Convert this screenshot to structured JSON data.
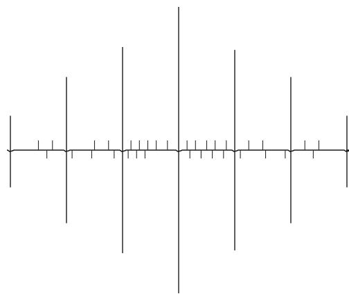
{
  "figure": {
    "background_color": "#ffffff",
    "line_color": "#1a1a1a",
    "description_type": "line spectrum with symmetric spikes around a central peak"
  },
  "chart_data": {
    "type": "line-spectrum",
    "title": "",
    "xlabel": "",
    "ylabel": "",
    "grid": false,
    "legend": "none",
    "major_peaks": [
      {
        "position": -3,
        "up": 0.24,
        "down": 0.26
      },
      {
        "position": -2,
        "up": 0.51,
        "down": 0.51
      },
      {
        "position": -1,
        "up": 0.72,
        "down": 0.72
      },
      {
        "position": 0,
        "up": 1.0,
        "down": 1.0
      },
      {
        "position": 1,
        "up": 0.7,
        "down": 0.7
      },
      {
        "position": 2,
        "up": 0.51,
        "down": 0.51
      },
      {
        "position": 3,
        "up": 0.24,
        "down": 0.26
      }
    ],
    "minor_ticks_above": [
      -2.5,
      -2.25,
      -1.5,
      -1.25,
      -0.85,
      -0.7,
      -0.55,
      -0.4,
      -0.2,
      0.15,
      0.3,
      0.5,
      0.65,
      0.85,
      1.25,
      1.5,
      2.25,
      2.5
    ],
    "minor_ticks_below": [
      -2.35,
      -1.9,
      -1.55,
      -1.15,
      -0.9,
      -0.75,
      -0.6,
      0.2,
      0.4,
      0.6,
      0.8,
      1.1,
      1.55,
      1.9,
      2.4
    ]
  }
}
